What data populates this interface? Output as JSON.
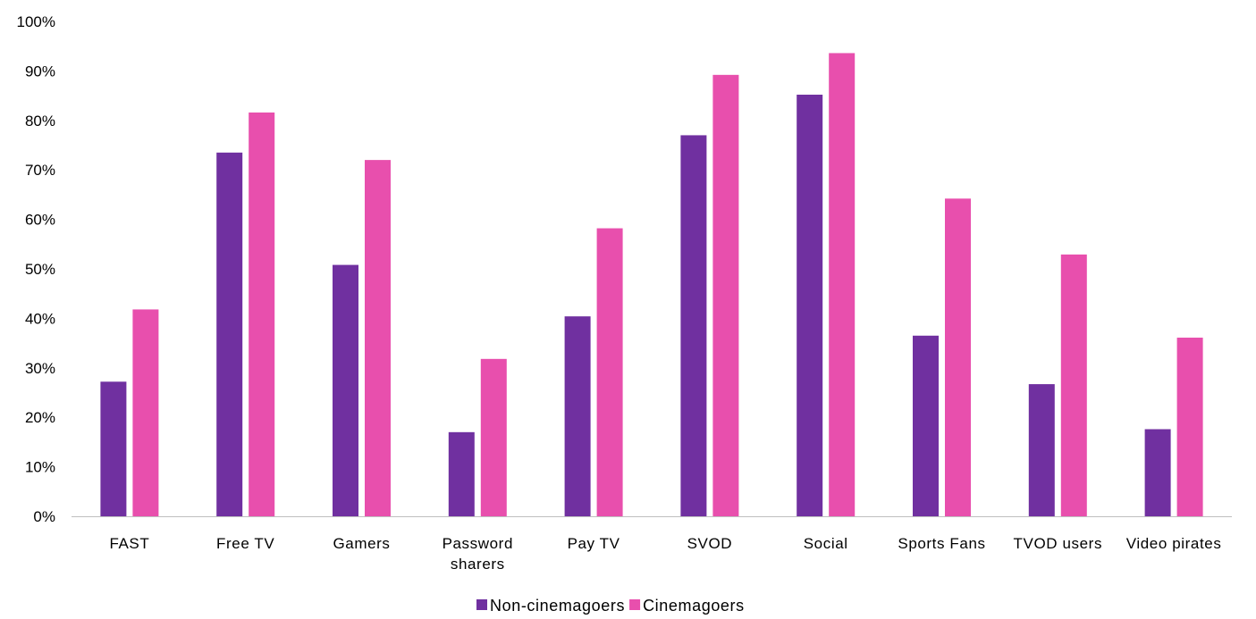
{
  "chart_data": {
    "type": "bar",
    "categories": [
      "FAST",
      "Free TV",
      "Gamers",
      "Password sharers",
      "Pay TV",
      "SVOD",
      "Social",
      "Sports Fans",
      "TVOD users",
      "Video pirates"
    ],
    "category_lines": [
      [
        "FAST"
      ],
      [
        "Free TV"
      ],
      [
        "Gamers"
      ],
      [
        "Password",
        "sharers"
      ],
      [
        "Pay TV"
      ],
      [
        "SVOD"
      ],
      [
        "Social"
      ],
      [
        "Sports Fans"
      ],
      [
        "TVOD users"
      ],
      [
        "Video pirates"
      ]
    ],
    "series": [
      {
        "name": "Non-cinemagoers",
        "color": "#7030a0",
        "values": [
          27.2,
          73.5,
          50.8,
          17.0,
          40.4,
          77.0,
          85.2,
          36.5,
          26.7,
          17.6
        ]
      },
      {
        "name": "Cinemagoers",
        "color": "#e84fad",
        "values": [
          41.8,
          81.6,
          72.0,
          31.8,
          58.2,
          89.2,
          93.6,
          64.2,
          52.9,
          36.1
        ]
      }
    ],
    "y_ticks": [
      "0%",
      "10%",
      "20%",
      "30%",
      "40%",
      "50%",
      "60%",
      "70%",
      "80%",
      "90%",
      "100%"
    ],
    "ylim": [
      0,
      100
    ],
    "y_unit": "%",
    "grid": false,
    "legend_position": "bottom",
    "title": "",
    "xlabel": "",
    "ylabel": ""
  }
}
